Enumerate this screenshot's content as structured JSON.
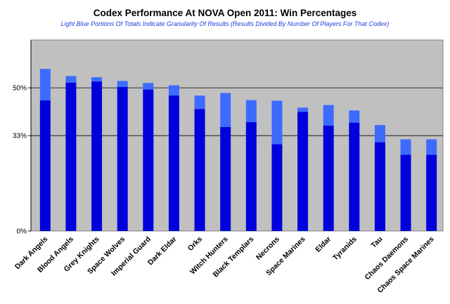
{
  "chart_data": {
    "type": "bar",
    "title": "Codex Performance At NOVA Open 2011: Win Percentages",
    "subtitle": "Light Blue Portions Of Totals Indicate Granularity Of Results (Results Divided By Number Of Players For That Codex)",
    "y_ticks": [
      {
        "value": 50,
        "label": "50%"
      },
      {
        "value": 33.3,
        "label": "33%"
      },
      {
        "value": 0,
        "label": "0%"
      }
    ],
    "ylim": [
      0,
      66.7
    ],
    "grid": true,
    "categories": [
      "Dark Angels",
      "Blood Angels",
      "Grey Knights",
      "Space Wolves",
      "Imperial Guard",
      "Dark Eldar",
      "Orks",
      "Witch Hunters",
      "Black Templars",
      "Necrons",
      "Space Marines",
      "Eldar",
      "Tyranids",
      "Tau",
      "Chaos Daemons",
      "Chaos Space Marines"
    ],
    "series": [
      {
        "values": [
          45.6,
          51.8,
          52.2,
          50.3,
          49.4,
          47.3,
          42.6,
          36.3,
          38.0,
          30.3,
          41.6,
          36.8,
          37.8,
          31.0,
          26.6,
          26.6
        ]
      },
      {
        "values": [
          11.0,
          2.3,
          1.5,
          2.1,
          2.3,
          3.6,
          4.7,
          11.9,
          7.7,
          15.2,
          1.5,
          7.2,
          4.3,
          6.0,
          5.4,
          5.4
        ]
      }
    ],
    "colors": {
      "base": "#0000dd",
      "granularity": "#3d6bff",
      "plot_background": "#c0c0c0",
      "gridline": "#000000"
    }
  }
}
